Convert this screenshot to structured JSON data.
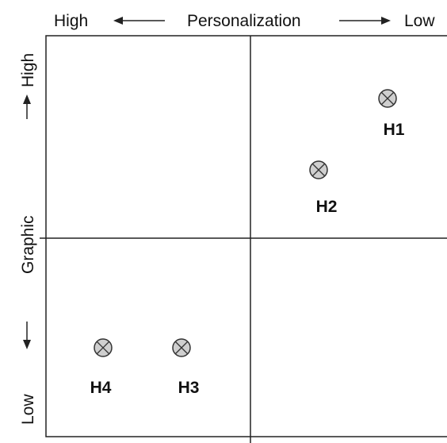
{
  "axes": {
    "top": {
      "left": "High",
      "title": "Personalization",
      "right": "Low"
    },
    "left": {
      "top": "High",
      "title": "Graphic",
      "bottom": "Low"
    }
  },
  "nodes": [
    {
      "label": "H1"
    },
    {
      "label": "H2"
    },
    {
      "label": "H3"
    },
    {
      "label": "H4"
    }
  ]
}
